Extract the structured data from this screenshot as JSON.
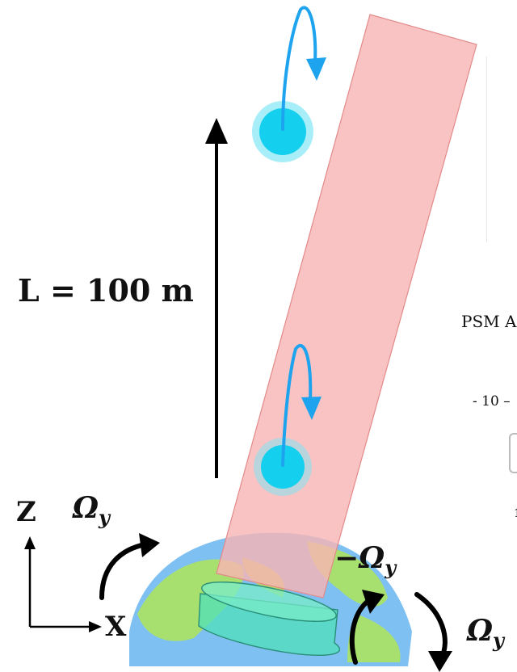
{
  "length_label": "L = 100 m",
  "axis": {
    "z": "Z",
    "x": "X"
  },
  "rotation": {
    "omega_symbol": "Ω",
    "omega_subscript": "y",
    "negative_sign": "−"
  },
  "clipped_text": {
    "psm": "PSM A",
    "tick": "- 10 –",
    "small": "1"
  },
  "colors": {
    "beam": "#f9b4b4",
    "beam_edge": "#e38a8a",
    "atom_inner": "#14d0ee",
    "atom_halo": "#a8eef8",
    "flow_arrow": "#1ea3ee",
    "earth_ocean": "#7fc0f2",
    "earth_land": "#a8e070",
    "platform": "#4fe0b8"
  }
}
